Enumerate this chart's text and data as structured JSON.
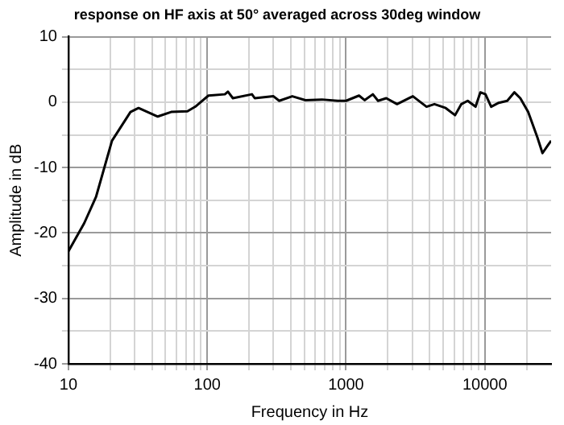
{
  "chart_data": {
    "type": "line",
    "title": "response on HF axis at 50° averaged across 30deg window",
    "xlabel": "Frequency in Hz",
    "ylabel": "Amplitude in dB",
    "log": "x",
    "grid": true,
    "marker": "none",
    "line_style": "solid",
    "xlim": [
      10,
      30000
    ],
    "ylim": [
      -40,
      10
    ],
    "xticks": [
      10,
      {
        "value": 20,
        "label": null
      },
      {
        "value": 30,
        "label": null
      },
      {
        "value": 40,
        "label": null
      },
      {
        "value": 50,
        "label": null
      },
      {
        "value": 60,
        "label": null
      },
      {
        "value": 70,
        "label": null
      },
      {
        "value": 80,
        "label": null
      },
      {
        "value": 90,
        "label": null
      },
      100,
      {
        "value": 200,
        "label": null
      },
      {
        "value": 300,
        "label": null
      },
      {
        "value": 400,
        "label": null
      },
      {
        "value": 500,
        "label": null
      },
      {
        "value": 600,
        "label": null
      },
      {
        "value": 700,
        "label": null
      },
      {
        "value": 800,
        "label": null
      },
      {
        "value": 900,
        "label": null
      },
      1000,
      {
        "value": 2000,
        "label": null
      },
      {
        "value": 3000,
        "label": null
      },
      {
        "value": 4000,
        "label": null
      },
      {
        "value": 5000,
        "label": null
      },
      {
        "value": 6000,
        "label": null
      },
      {
        "value": 7000,
        "label": null
      },
      {
        "value": 8000,
        "label": null
      },
      {
        "value": 9000,
        "label": null
      },
      10000,
      {
        "value": 20000,
        "label": null
      }
    ],
    "yticks": [
      -40,
      {
        "value": -35,
        "label": null
      },
      -30,
      {
        "value": -25,
        "label": null
      },
      -20,
      {
        "value": -15,
        "label": null
      },
      -10,
      {
        "value": -5,
        "label": null
      },
      0,
      {
        "value": 5,
        "label": null
      },
      10
    ],
    "series": [
      {
        "color": "#000000",
        "x": [
          10,
          13,
          15.8,
          20.6,
          28,
          32,
          44,
          55,
          72,
          82,
          102,
          134,
          141,
          153,
          210,
          220,
          300,
          330,
          410,
          510,
          670,
          870,
          1000,
          1240,
          1360,
          1560,
          1700,
          1950,
          2330,
          3030,
          3800,
          4330,
          5220,
          6100,
          6770,
          7520,
          8570,
          9280,
          10100,
          11100,
          12600,
          14500,
          16300,
          18000,
          20500,
          23900,
          26000,
          28200,
          30000
        ],
        "values": [
          -22.8,
          -18.5,
          -14.5,
          -5.9,
          -1.5,
          -0.9,
          -2.2,
          -1.5,
          -1.4,
          -0.7,
          1.0,
          1.2,
          1.6,
          0.6,
          1.2,
          0.6,
          0.9,
          0.2,
          0.9,
          0.3,
          0.4,
          0.2,
          0.2,
          1.0,
          0.3,
          1.2,
          0.2,
          0.6,
          -0.3,
          0.9,
          -0.7,
          -0.3,
          -0.9,
          -2.0,
          -0.3,
          0.2,
          -0.7,
          1.5,
          1.2,
          -0.7,
          -0.1,
          0.2,
          1.5,
          0.6,
          -1.5,
          -5.4,
          -7.8,
          -6.7,
          -5.9
        ]
      }
    ]
  }
}
